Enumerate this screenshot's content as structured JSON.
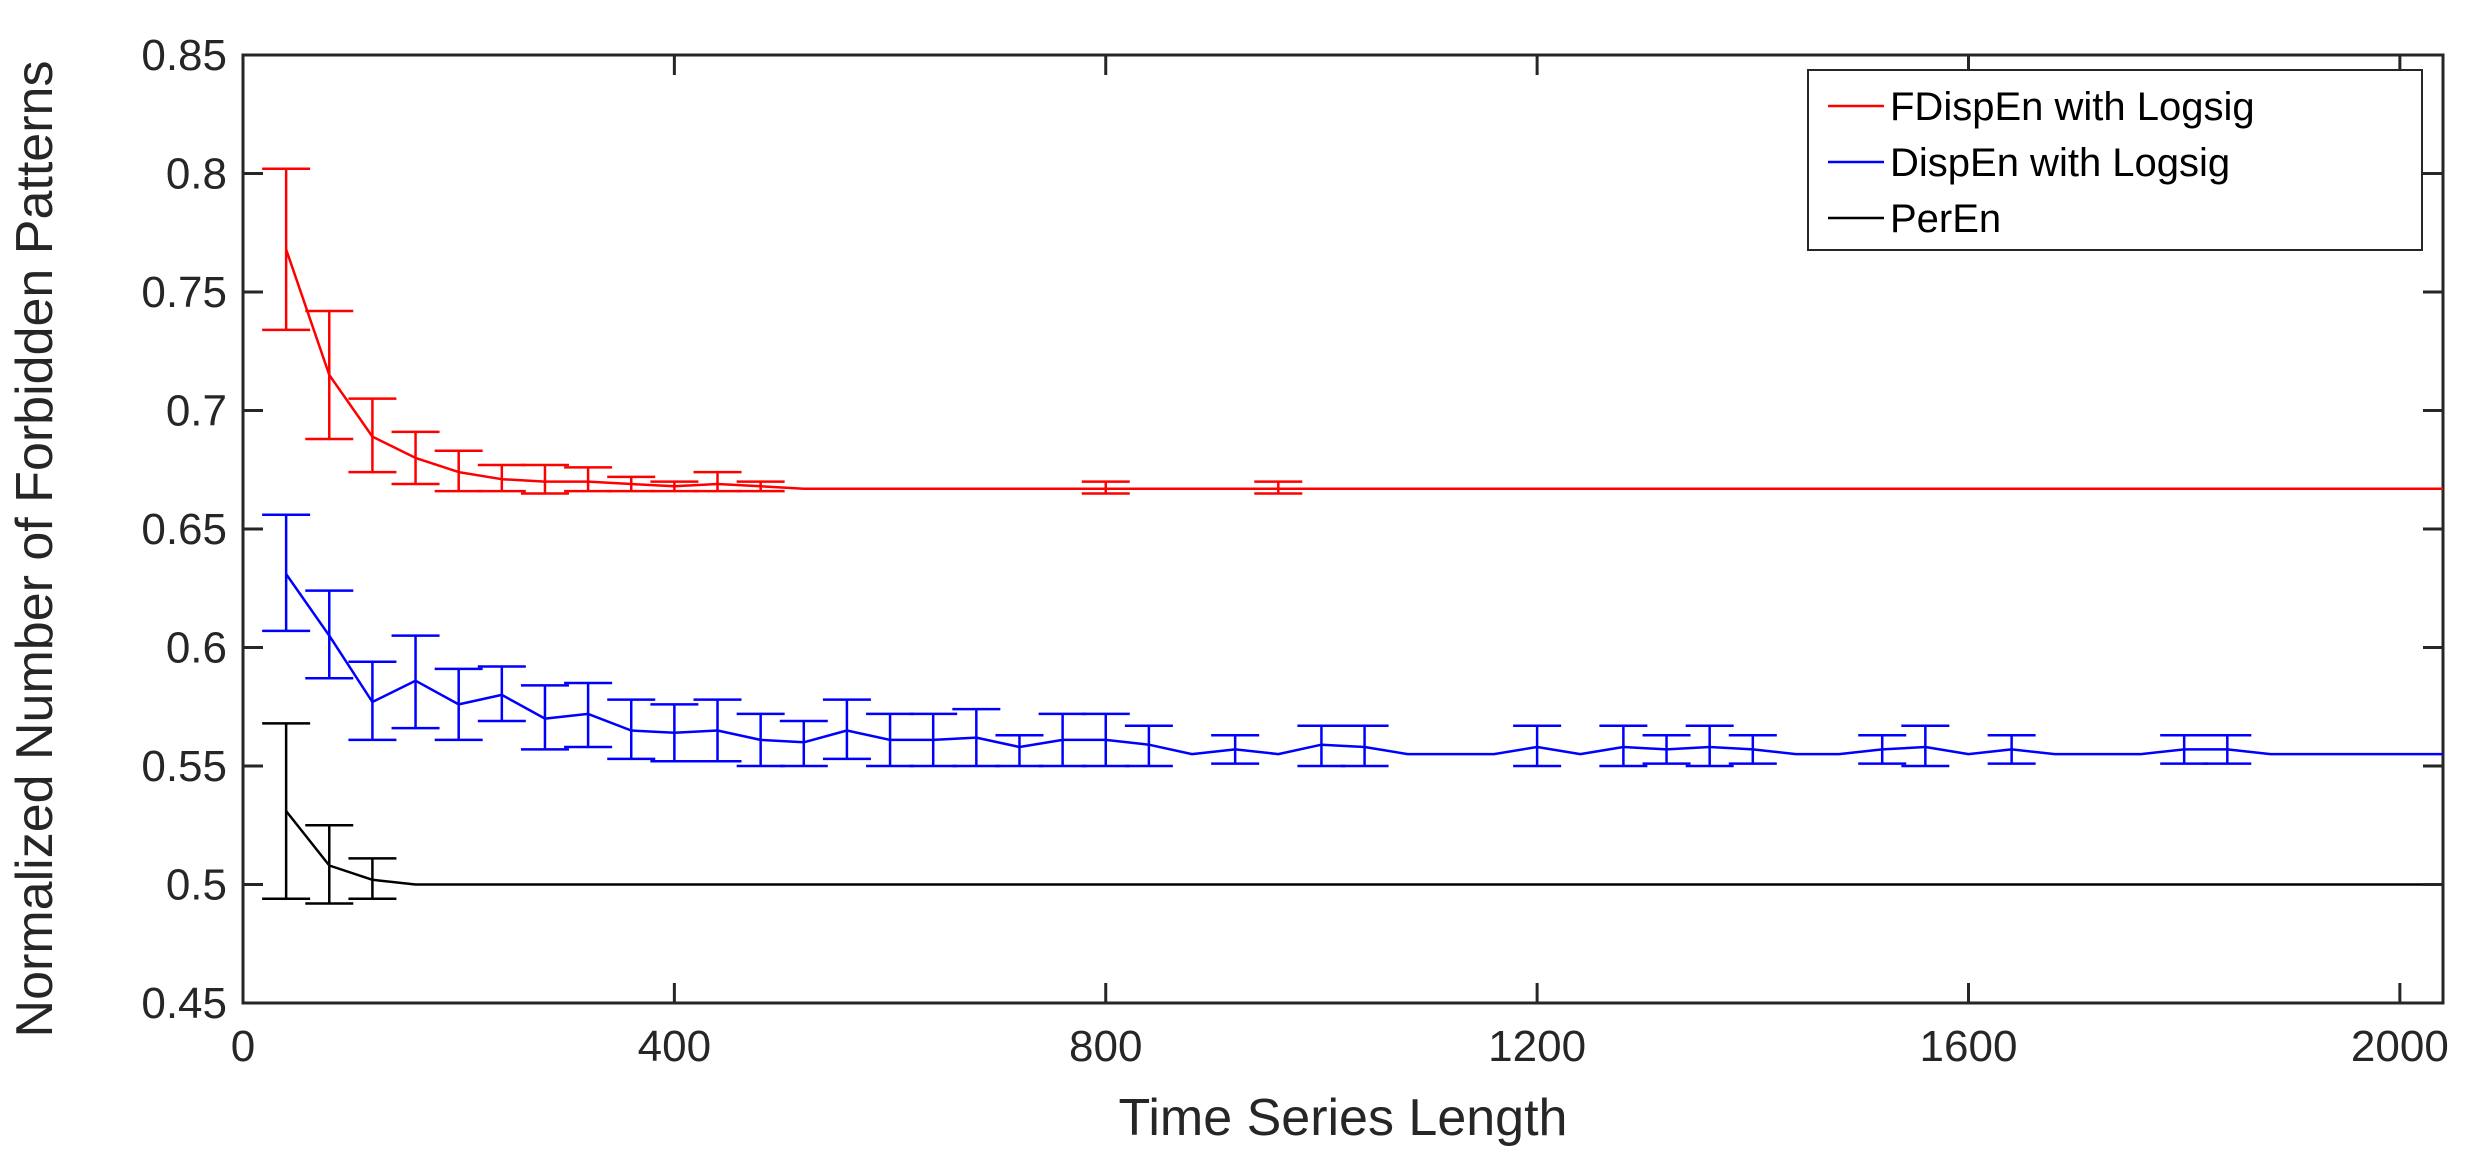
{
  "chart_data": {
    "type": "line",
    "title": "",
    "xlabel": "Time Series Length",
    "ylabel": "Normalized Number of Forbidden Patterns",
    "xlim": [
      0,
      2040
    ],
    "ylim": [
      0.45,
      0.85
    ],
    "xticks": [
      0,
      400,
      800,
      1200,
      1600,
      2000
    ],
    "xtick_labels": [
      "0",
      "400",
      "800",
      "1200",
      "1600",
      "2000"
    ],
    "yticks": [
      0.45,
      0.5,
      0.55,
      0.6,
      0.65,
      0.7,
      0.75,
      0.8,
      0.85
    ],
    "ytick_labels": [
      "0.45",
      "0.5",
      "0.55",
      "0.6",
      "0.65",
      "0.7",
      "0.75",
      "0.8",
      "0.85"
    ],
    "grid": false,
    "legend_position": "top-right",
    "series": [
      {
        "name": "FDispEn with Logsig",
        "color": "#ff0000",
        "x": [
          40,
          80,
          120,
          160,
          200,
          240,
          280,
          320,
          360,
          400,
          440,
          480,
          520,
          600,
          700,
          800,
          900,
          960,
          1000,
          1200,
          1400,
          1600,
          1800,
          2000,
          2040
        ],
        "y": [
          0.768,
          0.715,
          0.689,
          0.68,
          0.674,
          0.671,
          0.67,
          0.67,
          0.669,
          0.668,
          0.669,
          0.668,
          0.667,
          0.667,
          0.667,
          0.667,
          0.667,
          0.667,
          0.667,
          0.667,
          0.667,
          0.667,
          0.667,
          0.667,
          0.667
        ],
        "errors": [
          {
            "x": 40,
            "low": 0.734,
            "high": 0.802
          },
          {
            "x": 80,
            "low": 0.688,
            "high": 0.742
          },
          {
            "x": 120,
            "low": 0.674,
            "high": 0.705
          },
          {
            "x": 160,
            "low": 0.669,
            "high": 0.691
          },
          {
            "x": 200,
            "low": 0.666,
            "high": 0.683
          },
          {
            "x": 240,
            "low": 0.666,
            "high": 0.677
          },
          {
            "x": 280,
            "low": 0.665,
            "high": 0.677
          },
          {
            "x": 320,
            "low": 0.666,
            "high": 0.676
          },
          {
            "x": 360,
            "low": 0.666,
            "high": 0.672
          },
          {
            "x": 400,
            "low": 0.666,
            "high": 0.67
          },
          {
            "x": 440,
            "low": 0.666,
            "high": 0.674
          },
          {
            "x": 480,
            "low": 0.666,
            "high": 0.67
          },
          {
            "x": 800,
            "low": 0.665,
            "high": 0.67
          },
          {
            "x": 960,
            "low": 0.665,
            "high": 0.67
          }
        ]
      },
      {
        "name": "DispEn with Logsig",
        "color": "#0000ff",
        "x": [
          40,
          80,
          120,
          160,
          200,
          240,
          280,
          320,
          360,
          400,
          440,
          480,
          520,
          560,
          600,
          640,
          680,
          720,
          760,
          800,
          840,
          880,
          920,
          960,
          1000,
          1040,
          1080,
          1120,
          1160,
          1200,
          1240,
          1280,
          1320,
          1360,
          1400,
          1440,
          1480,
          1520,
          1560,
          1600,
          1640,
          1680,
          1720,
          1760,
          1800,
          1840,
          1880,
          1920,
          1960,
          2000,
          2040
        ],
        "y": [
          0.631,
          0.605,
          0.577,
          0.586,
          0.576,
          0.58,
          0.57,
          0.572,
          0.565,
          0.564,
          0.565,
          0.561,
          0.56,
          0.565,
          0.561,
          0.561,
          0.562,
          0.558,
          0.561,
          0.561,
          0.559,
          0.555,
          0.557,
          0.555,
          0.559,
          0.558,
          0.555,
          0.555,
          0.555,
          0.558,
          0.555,
          0.558,
          0.557,
          0.558,
          0.557,
          0.555,
          0.555,
          0.557,
          0.558,
          0.555,
          0.557,
          0.555,
          0.555,
          0.555,
          0.557,
          0.557,
          0.555,
          0.555,
          0.555,
          0.555,
          0.555
        ],
        "errors": [
          {
            "x": 40,
            "low": 0.607,
            "high": 0.656
          },
          {
            "x": 80,
            "low": 0.587,
            "high": 0.624
          },
          {
            "x": 120,
            "low": 0.561,
            "high": 0.594
          },
          {
            "x": 160,
            "low": 0.566,
            "high": 0.605
          },
          {
            "x": 200,
            "low": 0.561,
            "high": 0.591
          },
          {
            "x": 240,
            "low": 0.569,
            "high": 0.592
          },
          {
            "x": 280,
            "low": 0.557,
            "high": 0.584
          },
          {
            "x": 320,
            "low": 0.558,
            "high": 0.585
          },
          {
            "x": 360,
            "low": 0.553,
            "high": 0.578
          },
          {
            "x": 400,
            "low": 0.552,
            "high": 0.576
          },
          {
            "x": 440,
            "low": 0.552,
            "high": 0.578
          },
          {
            "x": 480,
            "low": 0.55,
            "high": 0.572
          },
          {
            "x": 520,
            "low": 0.55,
            "high": 0.569
          },
          {
            "x": 560,
            "low": 0.553,
            "high": 0.578
          },
          {
            "x": 600,
            "low": 0.55,
            "high": 0.572
          },
          {
            "x": 640,
            "low": 0.55,
            "high": 0.572
          },
          {
            "x": 680,
            "low": 0.55,
            "high": 0.574
          },
          {
            "x": 720,
            "low": 0.55,
            "high": 0.563
          },
          {
            "x": 760,
            "low": 0.55,
            "high": 0.572
          },
          {
            "x": 800,
            "low": 0.55,
            "high": 0.572
          },
          {
            "x": 840,
            "low": 0.55,
            "high": 0.567
          },
          {
            "x": 920,
            "low": 0.551,
            "high": 0.563
          },
          {
            "x": 1000,
            "low": 0.55,
            "high": 0.567
          },
          {
            "x": 1040,
            "low": 0.55,
            "high": 0.567
          },
          {
            "x": 1200,
            "low": 0.55,
            "high": 0.567
          },
          {
            "x": 1280,
            "low": 0.55,
            "high": 0.567
          },
          {
            "x": 1320,
            "low": 0.551,
            "high": 0.563
          },
          {
            "x": 1360,
            "low": 0.55,
            "high": 0.567
          },
          {
            "x": 1400,
            "low": 0.551,
            "high": 0.563
          },
          {
            "x": 1520,
            "low": 0.551,
            "high": 0.563
          },
          {
            "x": 1560,
            "low": 0.55,
            "high": 0.567
          },
          {
            "x": 1640,
            "low": 0.551,
            "high": 0.563
          },
          {
            "x": 1800,
            "low": 0.551,
            "high": 0.563
          },
          {
            "x": 1840,
            "low": 0.551,
            "high": 0.563
          }
        ]
      },
      {
        "name": "PerEn",
        "color": "#000000",
        "x": [
          40,
          80,
          120,
          160,
          200,
          400,
          800,
          1200,
          1600,
          2000,
          2040
        ],
        "y": [
          0.531,
          0.508,
          0.502,
          0.5,
          0.5,
          0.5,
          0.5,
          0.5,
          0.5,
          0.5,
          0.5
        ],
        "errors": [
          {
            "x": 40,
            "low": 0.494,
            "high": 0.568
          },
          {
            "x": 80,
            "low": 0.492,
            "high": 0.525
          },
          {
            "x": 120,
            "low": 0.494,
            "high": 0.511
          }
        ]
      }
    ]
  }
}
